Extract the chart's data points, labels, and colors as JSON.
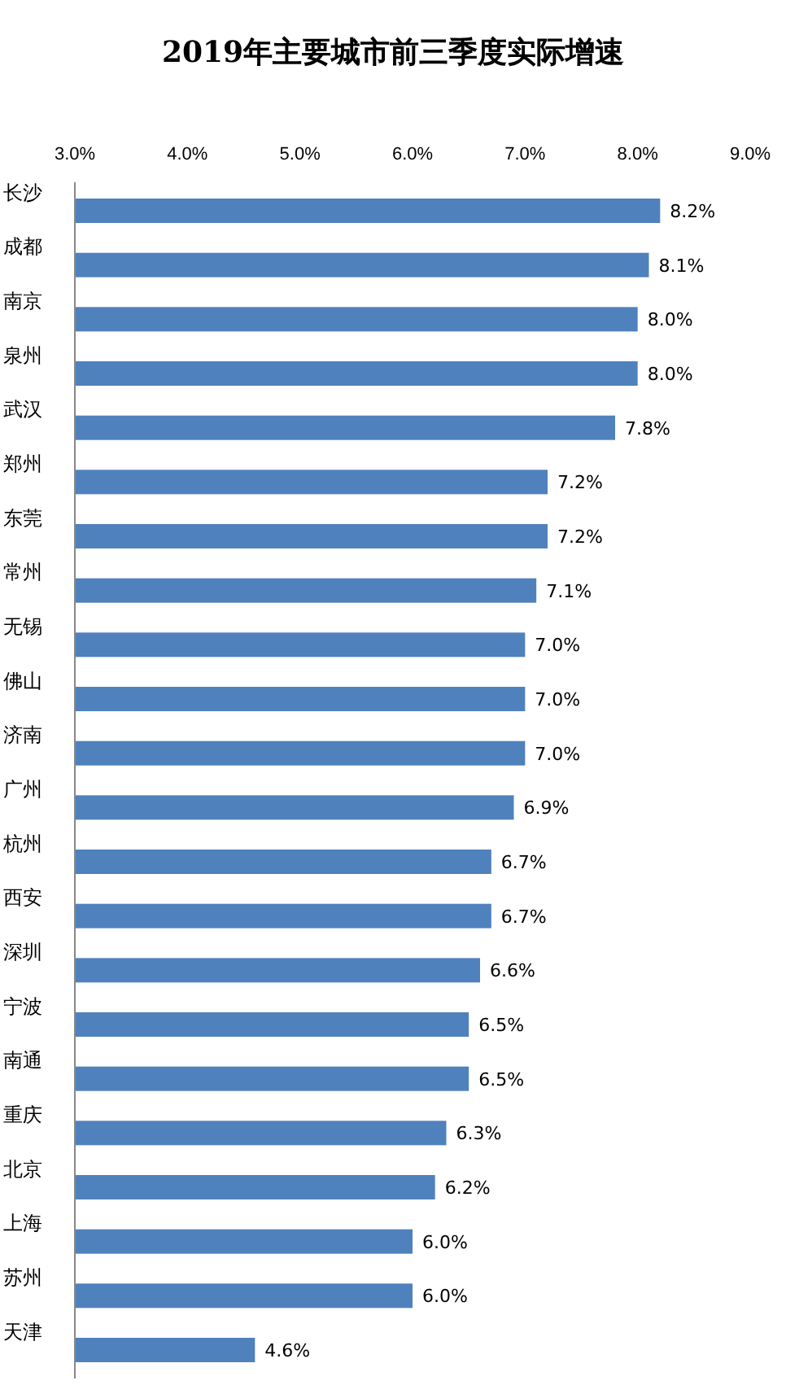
{
  "chart_data": {
    "type": "bar",
    "orientation": "horizontal",
    "title": "2019年主要城市前三季度实际增速",
    "categories": [
      "长沙",
      "成都",
      "南京",
      "泉州",
      "武汉",
      "郑州",
      "东莞",
      "常州",
      "无锡",
      "佛山",
      "济南",
      "广州",
      "杭州",
      "西安",
      "深圳",
      "宁波",
      "南通",
      "重庆",
      "北京",
      "上海",
      "苏州",
      "天津"
    ],
    "values": [
      8.2,
      8.1,
      8.0,
      8.0,
      7.8,
      7.2,
      7.2,
      7.1,
      7.0,
      7.0,
      7.0,
      6.9,
      6.7,
      6.7,
      6.6,
      6.5,
      6.5,
      6.3,
      6.2,
      6.0,
      6.0,
      4.6
    ],
    "value_labels": [
      "8.2%",
      "8.1%",
      "8.0%",
      "8.0%",
      "7.8%",
      "7.2%",
      "7.2%",
      "7.1%",
      "7.0%",
      "7.0%",
      "7.0%",
      "6.9%",
      "6.7%",
      "6.7%",
      "6.6%",
      "6.5%",
      "6.5%",
      "6.3%",
      "6.2%",
      "6.0%",
      "6.0%",
      "4.6%"
    ],
    "color": "#4f81bd",
    "xlim": [
      3,
      9
    ],
    "xticks": [
      {
        "value": 3,
        "label": "3.0%"
      },
      {
        "value": 4,
        "label": "4.0%"
      },
      {
        "value": 5,
        "label": "5.0%"
      },
      {
        "value": 6,
        "label": "6.0%"
      },
      {
        "value": 7,
        "label": "7.0%"
      },
      {
        "value": 8,
        "label": "8.0%"
      },
      {
        "value": 9,
        "label": "9.0%"
      }
    ],
    "grid": false
  }
}
